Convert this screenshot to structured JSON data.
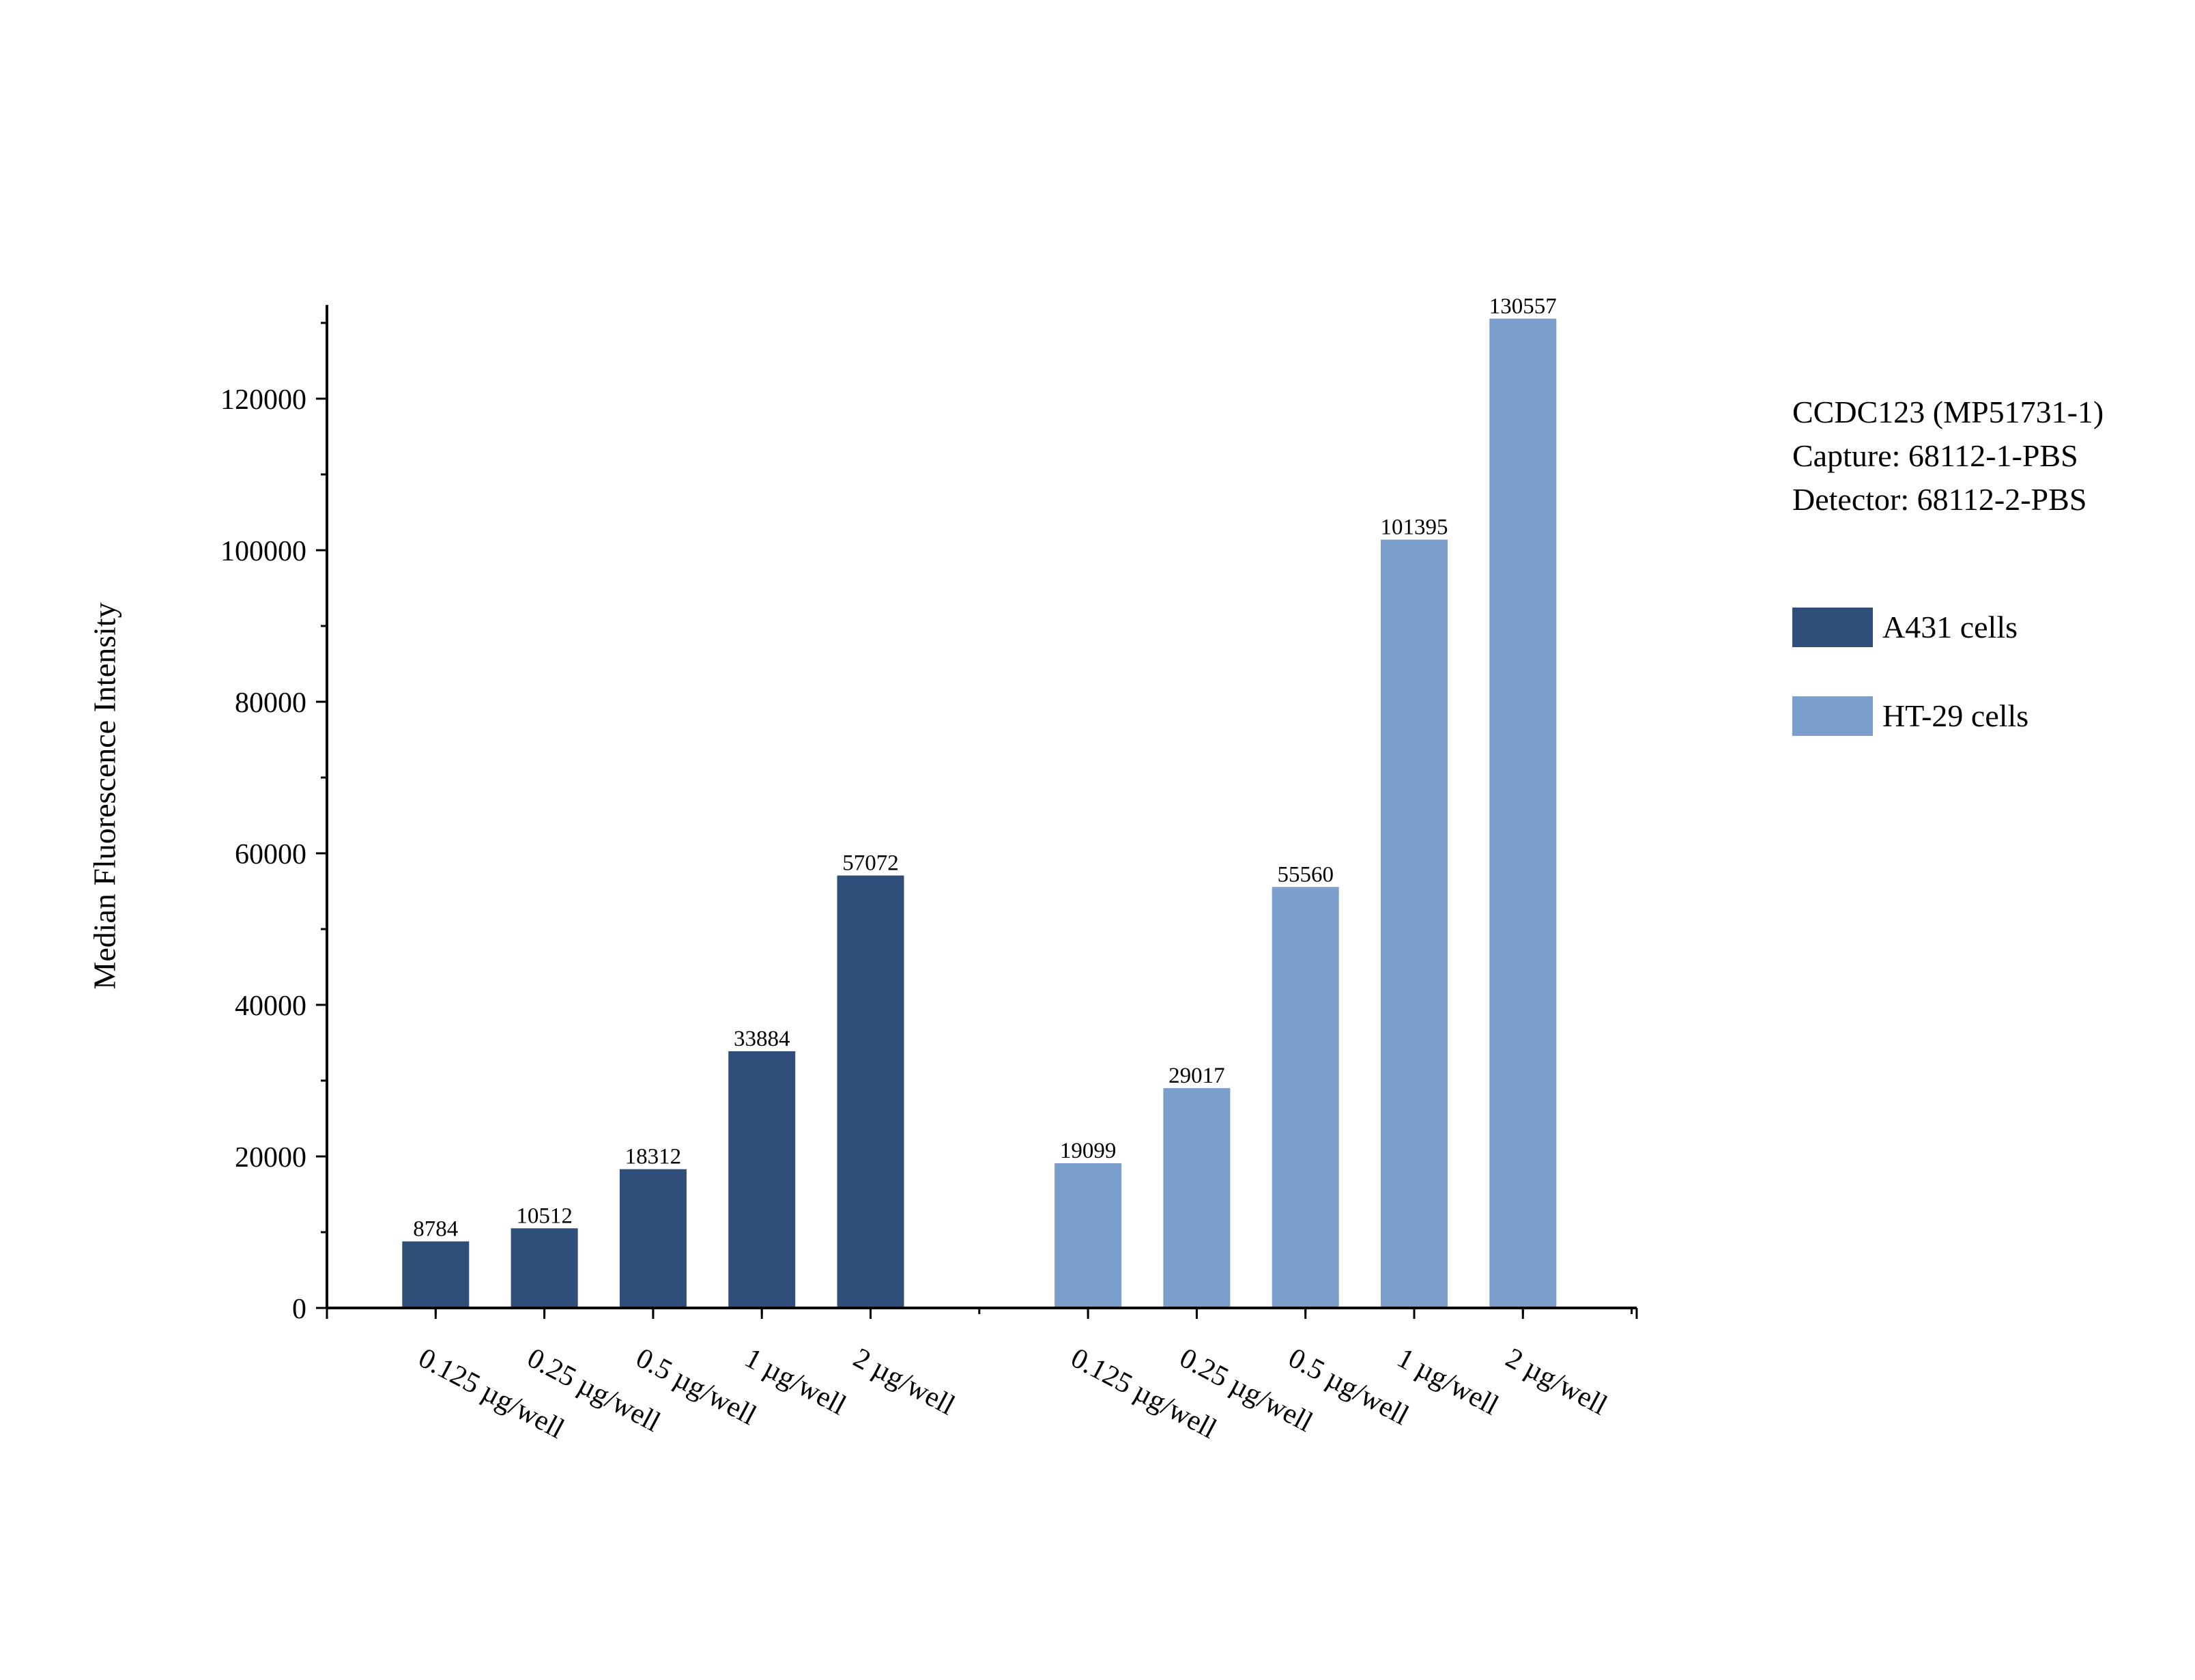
{
  "chart_data": {
    "type": "bar",
    "ylabel": "Median Fluorescence Intensity",
    "xlabel": "",
    "ylim": [
      0,
      132000
    ],
    "yticks": [
      0,
      20000,
      40000,
      60000,
      80000,
      100000,
      120000
    ],
    "yminor_step": 10000,
    "grid": false,
    "legend_position": "right",
    "annotation": [
      "CCDC123 (MP51731-1)",
      "Capture: 68112-1-PBS",
      "Detector: 68112-2-PBS"
    ],
    "series": [
      {
        "name": "A431 cells",
        "color": "#2f4f7a",
        "categories": [
          "0.125 µg/well",
          "0.25 µg/well",
          "0.5 µg/well",
          "1 µg/well",
          "2 µg/well"
        ],
        "values": [
          8784,
          10512,
          18312,
          33884,
          57072
        ]
      },
      {
        "name": "HT-29 cells",
        "color": "#7b9ecc",
        "categories": [
          "0.125 µg/well",
          "0.25 µg/well",
          "0.5 µg/well",
          "1 µg/well",
          "2 µg/well"
        ],
        "values": [
          19099,
          29017,
          55560,
          101395,
          130557
        ]
      }
    ]
  }
}
